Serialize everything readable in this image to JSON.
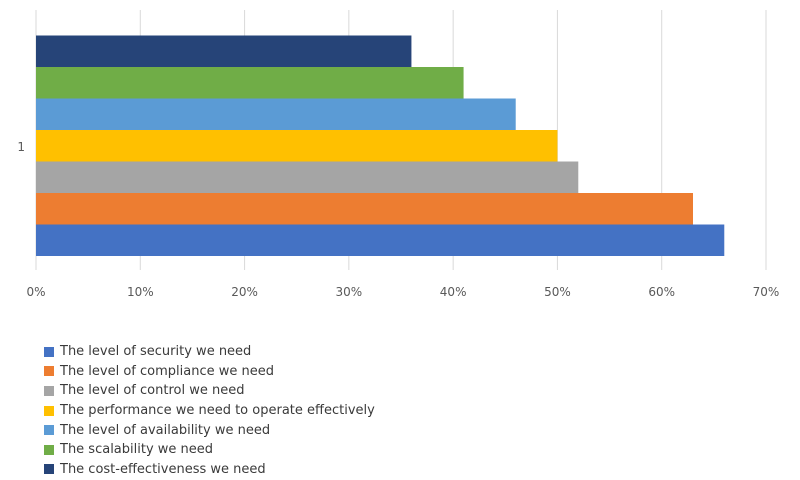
{
  "chart_data": {
    "type": "bar",
    "orientation": "horizontal",
    "categories": [
      "1"
    ],
    "series": [
      {
        "name": "The level of security we need",
        "values": [
          66
        ],
        "color": "#4472C4"
      },
      {
        "name": "The level of compliance we need",
        "values": [
          63
        ],
        "color": "#ED7D31"
      },
      {
        "name": "The level of control we need",
        "values": [
          52
        ],
        "color": "#A5A5A5"
      },
      {
        "name": "The performance we need to operate effectively",
        "values": [
          50
        ],
        "color": "#FFC000"
      },
      {
        "name": "The level of availability we need",
        "values": [
          46
        ],
        "color": "#5B9BD5"
      },
      {
        "name": "The scalability we need",
        "values": [
          41
        ],
        "color": "#70AD47"
      },
      {
        "name": "The cost-effectiveness we need",
        "values": [
          36
        ],
        "color": "#264478"
      }
    ],
    "x_ticks": [
      "0%",
      "10%",
      "20%",
      "30%",
      "40%",
      "50%",
      "60%",
      "70%"
    ],
    "xlim": [
      0,
      70
    ],
    "unit": "%",
    "grid": "vertical",
    "legend_position": "bottom-left"
  }
}
